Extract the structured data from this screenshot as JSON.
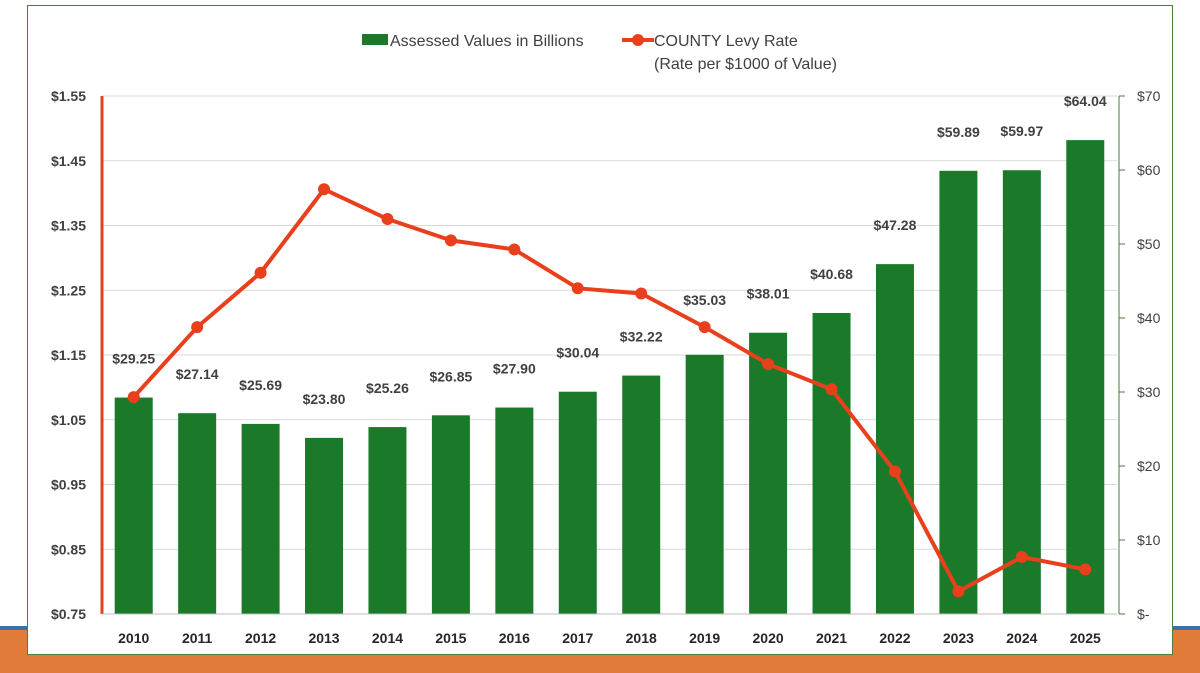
{
  "colors": {
    "bar": "#1b7a2a",
    "line": "#e8401c",
    "band": "#e07b39",
    "band_line": "#3a6fb0",
    "grid": "#d9d9d9",
    "frame": "#4f7a3a"
  },
  "chart_data": {
    "type": "bar",
    "categories": [
      "2010",
      "2011",
      "2012",
      "2013",
      "2014",
      "2015",
      "2016",
      "2017",
      "2018",
      "2019",
      "2020",
      "2021",
      "2022",
      "2023",
      "2024",
      "2025"
    ],
    "series": [
      {
        "name": "Assessed Values in Billions",
        "type": "bar",
        "axis": "right",
        "values": [
          29.25,
          27.14,
          25.69,
          23.8,
          25.26,
          26.85,
          27.9,
          30.04,
          32.22,
          35.03,
          38.01,
          40.68,
          47.28,
          59.89,
          59.97,
          64.04
        ],
        "labels": [
          "$29.25",
          "$27.14",
          "$25.69",
          "$23.80",
          "$25.26",
          "$26.85",
          "$27.90",
          "$30.04",
          "$32.22",
          "$35.03",
          "$38.01",
          "$40.68",
          "$47.28",
          "$59.89",
          "$59.97",
          "$64.04"
        ]
      },
      {
        "name": "COUNTY Levy Rate",
        "name_line2": "(Rate per $1000 of Value)",
        "type": "line",
        "axis": "left",
        "values": [
          1.085,
          1.193,
          1.277,
          1.406,
          1.36,
          1.327,
          1.313,
          1.253,
          1.245,
          1.193,
          1.136,
          1.097,
          0.97,
          0.785,
          0.838,
          0.819
        ]
      }
    ],
    "y_left": {
      "min": 0.75,
      "max": 1.55,
      "ticks": [
        1.55,
        1.45,
        1.35,
        1.25,
        1.15,
        1.05,
        0.95,
        0.85,
        0.75
      ],
      "tick_labels": [
        "$1.55",
        "$1.45",
        "$1.35",
        "$1.25",
        "$1.15",
        "$1.05",
        "$0.95",
        "$0.85",
        "$0.75"
      ]
    },
    "y_right": {
      "min": 0,
      "max": 70,
      "ticks": [
        70,
        60,
        50,
        40,
        30,
        20,
        10,
        0
      ],
      "tick_labels": [
        "$70",
        "$60",
        "$50",
        "$40",
        "$30",
        "$20",
        "$10",
        "$-"
      ]
    },
    "grid": true,
    "legend": "top-center"
  }
}
